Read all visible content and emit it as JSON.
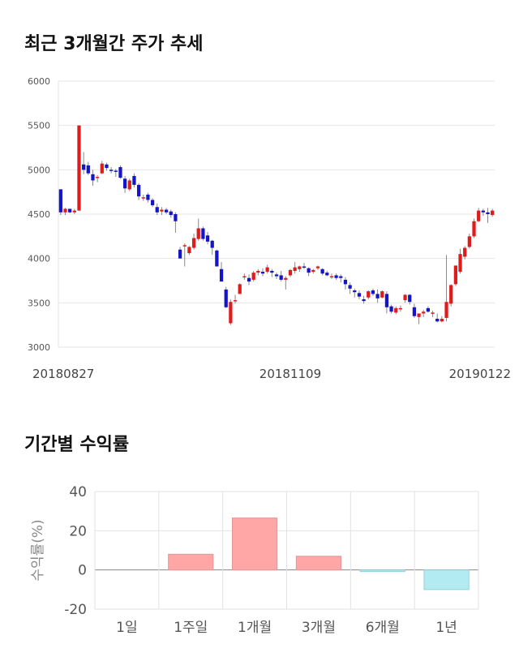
{
  "sections": {
    "price_title": "최근 3개월간 주가 추세",
    "return_title": "기간별 수익률"
  },
  "chart_data": [
    {
      "type": "candlestick",
      "title": "최근 3개월간 주가 추세",
      "ylim": [
        3000,
        6000
      ],
      "yticks": [
        3000,
        3500,
        4000,
        4500,
        5000,
        5500,
        6000
      ],
      "xtick_labels": [
        {
          "label": "20180827",
          "index": 0
        },
        {
          "label": "20181109",
          "index": 50
        },
        {
          "label": "20190122",
          "index": 99
        }
      ],
      "grid": true,
      "up_color": "#e01b1b",
      "down_color": "#1515c8",
      "candles": [
        [
          4780,
          4780,
          4490,
          4520
        ],
        [
          4520,
          4570,
          4490,
          4560
        ],
        [
          4560,
          4560,
          4510,
          4520
        ],
        [
          4520,
          4560,
          4500,
          4540
        ],
        [
          4540,
          5500,
          4540,
          5500
        ],
        [
          5060,
          5200,
          4950,
          5000
        ],
        [
          5050,
          5090,
          4940,
          4960
        ],
        [
          4950,
          5000,
          4820,
          4880
        ],
        [
          4910,
          4940,
          4860,
          4920
        ],
        [
          4960,
          5100,
          4950,
          5070
        ],
        [
          5060,
          5080,
          4990,
          5020
        ],
        [
          5000,
          5030,
          4960,
          4990
        ],
        [
          4990,
          5010,
          4920,
          4980
        ],
        [
          5030,
          5050,
          4900,
          4910
        ],
        [
          4900,
          4930,
          4740,
          4790
        ],
        [
          4780,
          4900,
          4760,
          4880
        ],
        [
          4930,
          4960,
          4800,
          4830
        ],
        [
          4830,
          4850,
          4660,
          4700
        ],
        [
          4690,
          4720,
          4650,
          4690
        ],
        [
          4720,
          4740,
          4630,
          4660
        ],
        [
          4660,
          4680,
          4580,
          4600
        ],
        [
          4580,
          4620,
          4490,
          4520
        ],
        [
          4530,
          4580,
          4490,
          4550
        ],
        [
          4550,
          4570,
          4500,
          4520
        ],
        [
          4530,
          4550,
          4460,
          4490
        ],
        [
          4500,
          4520,
          4290,
          4420
        ],
        [
          4100,
          4130,
          4000,
          4000
        ],
        [
          4140,
          4170,
          3910,
          4150
        ],
        [
          4060,
          4140,
          4040,
          4130
        ],
        [
          4120,
          4280,
          4100,
          4230
        ],
        [
          4220,
          4450,
          4200,
          4340
        ],
        [
          4340,
          4360,
          4200,
          4220
        ],
        [
          4260,
          4300,
          4160,
          4190
        ],
        [
          4200,
          4210,
          4040,
          4120
        ],
        [
          4090,
          4100,
          3910,
          3910
        ],
        [
          3880,
          3960,
          3740,
          3740
        ],
        [
          3650,
          3680,
          3440,
          3450
        ],
        [
          3270,
          3540,
          3250,
          3510
        ],
        [
          3520,
          3590,
          3490,
          3530
        ],
        [
          3600,
          3720,
          3600,
          3710
        ],
        [
          3790,
          3830,
          3760,
          3800
        ],
        [
          3780,
          3820,
          3700,
          3740
        ],
        [
          3760,
          3860,
          3740,
          3840
        ],
        [
          3840,
          3880,
          3810,
          3860
        ],
        [
          3850,
          3890,
          3800,
          3830
        ],
        [
          3850,
          3930,
          3830,
          3900
        ],
        [
          3860,
          3880,
          3790,
          3840
        ],
        [
          3820,
          3840,
          3770,
          3800
        ],
        [
          3810,
          3860,
          3740,
          3760
        ],
        [
          3760,
          3800,
          3650,
          3780
        ],
        [
          3810,
          3880,
          3790,
          3870
        ],
        [
          3860,
          3960,
          3830,
          3900
        ],
        [
          3880,
          3920,
          3850,
          3910
        ],
        [
          3910,
          3950,
          3880,
          3900
        ],
        [
          3890,
          3900,
          3800,
          3840
        ],
        [
          3850,
          3880,
          3830,
          3870
        ],
        [
          3890,
          3920,
          3870,
          3910
        ],
        [
          3880,
          3890,
          3810,
          3830
        ],
        [
          3840,
          3860,
          3800,
          3810
        ],
        [
          3790,
          3830,
          3770,
          3800
        ],
        [
          3810,
          3830,
          3760,
          3780
        ],
        [
          3800,
          3820,
          3730,
          3780
        ],
        [
          3760,
          3790,
          3650,
          3710
        ],
        [
          3700,
          3730,
          3600,
          3660
        ],
        [
          3640,
          3660,
          3560,
          3620
        ],
        [
          3610,
          3640,
          3540,
          3570
        ],
        [
          3540,
          3580,
          3490,
          3520
        ],
        [
          3560,
          3640,
          3540,
          3630
        ],
        [
          3640,
          3660,
          3580,
          3600
        ],
        [
          3600,
          3650,
          3500,
          3550
        ],
        [
          3560,
          3640,
          3550,
          3630
        ],
        [
          3600,
          3630,
          3380,
          3450
        ],
        [
          3460,
          3480,
          3380,
          3400
        ],
        [
          3390,
          3460,
          3370,
          3440
        ],
        [
          3430,
          3470,
          3400,
          3440
        ],
        [
          3530,
          3600,
          3500,
          3590
        ],
        [
          3590,
          3600,
          3480,
          3510
        ],
        [
          3450,
          3490,
          3330,
          3350
        ],
        [
          3340,
          3380,
          3260,
          3380
        ],
        [
          3380,
          3420,
          3340,
          3400
        ],
        [
          3440,
          3460,
          3390,
          3400
        ],
        [
          3390,
          3410,
          3340,
          3390
        ],
        [
          3320,
          3380,
          3280,
          3290
        ],
        [
          3290,
          3350,
          3280,
          3320
        ],
        [
          3330,
          4040,
          3290,
          3510
        ],
        [
          3490,
          3710,
          3460,
          3700
        ],
        [
          3710,
          3920,
          3690,
          3920
        ],
        [
          3850,
          4110,
          3830,
          4050
        ],
        [
          4020,
          4140,
          3990,
          4120
        ],
        [
          4130,
          4280,
          4110,
          4250
        ],
        [
          4250,
          4450,
          4230,
          4420
        ],
        [
          4420,
          4570,
          4410,
          4540
        ],
        [
          4540,
          4560,
          4480,
          4520
        ],
        [
          4520,
          4570,
          4400,
          4500
        ],
        [
          4490,
          4560,
          4470,
          4540
        ]
      ]
    },
    {
      "type": "bar",
      "title": "기간별 수익률",
      "ylabel": "수익률(%)",
      "categories": [
        "1일",
        "1주일",
        "1개월",
        "3개월",
        "6개월",
        "1년"
      ],
      "values": [
        0,
        8,
        26.5,
        7,
        -0.8,
        -10
      ],
      "ylim": [
        -20,
        40
      ],
      "yticks": [
        -20,
        0,
        20,
        40
      ],
      "grid": true,
      "pos_color": "#ffa6a6",
      "pos_stroke": "#e39696",
      "neg_color": "#b3ebf2",
      "neg_stroke": "#93cfda"
    }
  ]
}
